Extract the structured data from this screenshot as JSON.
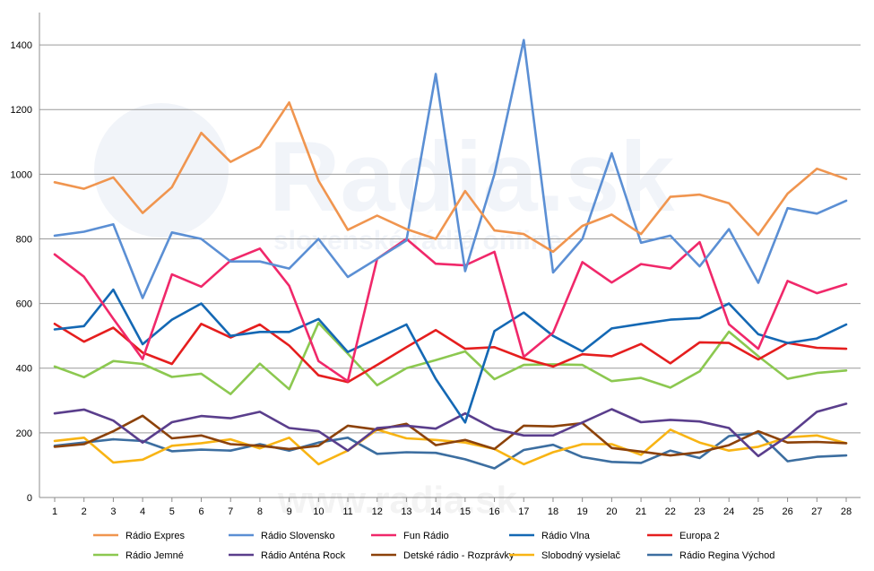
{
  "watermark": {
    "main": "Radia.sk",
    "sub": "slovenské rádiá online",
    "bottom": "www.radia.sk"
  },
  "chart_data": {
    "type": "line",
    "title": "",
    "xlabel": "",
    "ylabel": "",
    "x": [
      1,
      2,
      3,
      4,
      5,
      6,
      7,
      8,
      9,
      10,
      11,
      12,
      13,
      14,
      15,
      16,
      17,
      18,
      19,
      20,
      21,
      22,
      23,
      24,
      25,
      26,
      27,
      28
    ],
    "ylim": [
      0,
      1500
    ],
    "yticks": [
      0,
      200,
      400,
      600,
      800,
      1000,
      1200,
      1400
    ],
    "grid": "horizontal",
    "legend_position": "bottom",
    "series": [
      {
        "name": "Rádio Expres",
        "color": "#f0954f",
        "values": [
          975,
          955,
          990,
          880,
          960,
          1128,
          1038,
          1085,
          1222,
          980,
          828,
          872,
          830,
          800,
          948,
          826,
          815,
          760,
          840,
          875,
          815,
          930,
          937,
          910,
          812,
          940,
          1017,
          985
        ]
      },
      {
        "name": "Rádio Slovensko",
        "color": "#5b8fd4",
        "values": [
          810,
          822,
          845,
          617,
          820,
          800,
          730,
          730,
          708,
          800,
          682,
          738,
          795,
          1310,
          700,
          1000,
          1415,
          696,
          800,
          1065,
          788,
          810,
          715,
          830,
          664,
          895,
          878,
          918
        ]
      },
      {
        "name": "Fun Rádio",
        "color": "#f0286a",
        "values": [
          752,
          683,
          553,
          428,
          690,
          652,
          733,
          770,
          655,
          422,
          360,
          738,
          800,
          723,
          718,
          760,
          435,
          510,
          728,
          665,
          722,
          708,
          790,
          536,
          460,
          670,
          632,
          660
        ]
      },
      {
        "name": "Rádio Vlna",
        "color": "#1468b4",
        "values": [
          520,
          530,
          643,
          474,
          550,
          600,
          500,
          512,
          512,
          552,
          450,
          492,
          535,
          367,
          232,
          515,
          572,
          500,
          452,
          523,
          537,
          550,
          555,
          600,
          505,
          478,
          492,
          535
        ]
      },
      {
        "name": "Europa 2",
        "color": "#e51e1e",
        "values": [
          537,
          482,
          525,
          448,
          413,
          537,
          495,
          535,
          470,
          378,
          357,
          410,
          465,
          518,
          460,
          465,
          430,
          405,
          443,
          437,
          475,
          415,
          480,
          478,
          427,
          478,
          463,
          460
        ]
      },
      {
        "name": "Rádio Jemné",
        "color": "#8cc850",
        "values": [
          405,
          372,
          422,
          413,
          373,
          383,
          320,
          414,
          335,
          540,
          445,
          347,
          400,
          425,
          452,
          366,
          410,
          412,
          410,
          360,
          370,
          340,
          390,
          513,
          437,
          367,
          385,
          393
        ]
      },
      {
        "name": "Rádio Anténa Rock",
        "color": "#5a3e8c",
        "values": [
          260,
          272,
          238,
          170,
          233,
          252,
          245,
          265,
          215,
          205,
          145,
          215,
          222,
          213,
          260,
          212,
          192,
          192,
          232,
          273,
          233,
          240,
          235,
          215,
          128,
          190,
          265,
          290
        ]
      },
      {
        "name": "Detské rádio - Rozprávky",
        "color": "#8c420a",
        "values": [
          157,
          165,
          205,
          253,
          183,
          192,
          165,
          160,
          150,
          160,
          222,
          210,
          228,
          162,
          178,
          150,
          222,
          220,
          230,
          153,
          142,
          130,
          140,
          162,
          205,
          170,
          172,
          168
        ]
      },
      {
        "name": "Slobodný vysielač",
        "color": "#f8b414",
        "values": [
          175,
          185,
          108,
          117,
          160,
          168,
          180,
          152,
          185,
          103,
          145,
          210,
          183,
          178,
          170,
          150,
          103,
          140,
          165,
          165,
          132,
          210,
          170,
          145,
          157,
          186,
          192,
          168
        ]
      },
      {
        "name": "Rádio Regina Východ",
        "color": "#3c6ea0",
        "values": [
          160,
          170,
          180,
          175,
          143,
          148,
          145,
          165,
          145,
          170,
          185,
          135,
          140,
          138,
          118,
          90,
          147,
          163,
          125,
          110,
          107,
          145,
          122,
          190,
          200,
          112,
          126,
          130
        ]
      }
    ]
  }
}
